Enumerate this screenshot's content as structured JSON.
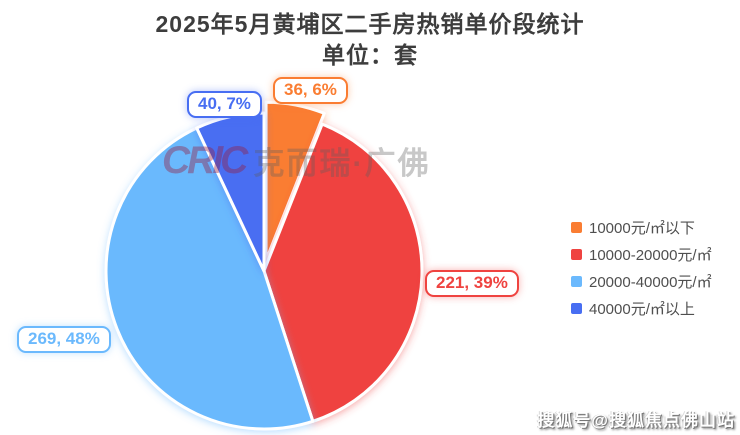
{
  "title": {
    "line1": "2025年5月黄埔区二手房热销单价段统计",
    "line2": "单位：套"
  },
  "watermark": {
    "logo": "CRIC",
    "text": "克而瑞·广佛"
  },
  "footer": {
    "credit": "搜狐号@搜狐焦点佛山站"
  },
  "chart_data": {
    "type": "pie",
    "title": "2025年5月黄埔区二手房热销单价段统计",
    "unit_label": "单位：套",
    "legend_position": "right",
    "start_angle_deg": 0,
    "direction": "clockwise",
    "total": 566,
    "slices": [
      {
        "name": "10000元/㎡以下",
        "value": 36,
        "pct": 6,
        "label": "36, 6%",
        "color": "#FA7D32",
        "exploded": true
      },
      {
        "name": "10000-20000元/㎡",
        "value": 221,
        "pct": 39,
        "label": "221, 39%",
        "color": "#EF4340",
        "exploded": false
      },
      {
        "name": "20000-40000元/㎡",
        "value": 269,
        "pct": 48,
        "label": "269, 48%",
        "color": "#6BB9FD",
        "exploded": false
      },
      {
        "name": "40000元/㎡以上",
        "value": 40,
        "pct": 7,
        "label": "40, 7%",
        "color": "#486EF2",
        "exploded": false
      }
    ]
  }
}
